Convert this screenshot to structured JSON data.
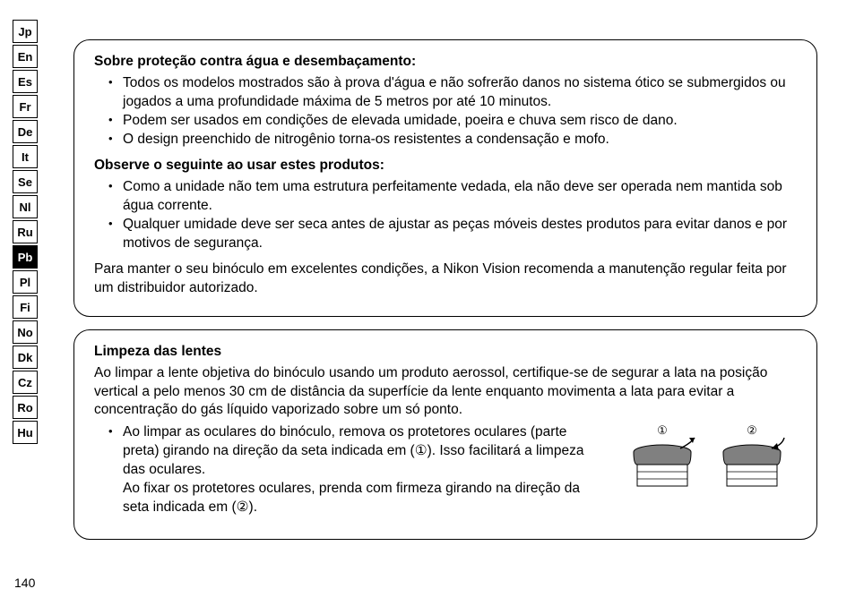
{
  "page_number": "140",
  "languages": {
    "items": [
      {
        "code": "Jp",
        "active": false
      },
      {
        "code": "En",
        "active": false
      },
      {
        "code": "Es",
        "active": false
      },
      {
        "code": "Fr",
        "active": false
      },
      {
        "code": "De",
        "active": false
      },
      {
        "code": "It",
        "active": false
      },
      {
        "code": "Se",
        "active": false
      },
      {
        "code": "Nl",
        "active": false
      },
      {
        "code": "Ru",
        "active": false
      },
      {
        "code": "Pb",
        "active": true
      },
      {
        "code": "Pl",
        "active": false
      },
      {
        "code": "Fi",
        "active": false
      },
      {
        "code": "No",
        "active": false
      },
      {
        "code": "Dk",
        "active": false
      },
      {
        "code": "Cz",
        "active": false
      },
      {
        "code": "Ro",
        "active": false
      },
      {
        "code": "Hu",
        "active": false
      }
    ]
  },
  "box1": {
    "heading1": "Sobre proteção contra água e desembaçamento:",
    "bullets1": [
      "Todos os modelos mostrados são à prova d'água e não sofrerão danos no sistema ótico se submergidos ou jogados a uma profundidade máxima de 5 metros por até 10 minutos.",
      "Podem ser usados em condições de elevada umidade, poeira e chuva sem risco de dano.",
      "O design preenchido de nitrogênio torna-os resistentes a condensação e mofo."
    ],
    "heading2": "Observe o seguinte ao usar estes produtos:",
    "bullets2": [
      "Como a unidade não tem uma estrutura perfeitamente vedada, ela não deve ser operada nem mantida sob água corrente.",
      "Qualquer umidade deve ser seca antes de ajustar as peças móveis destes produtos para evitar danos e por motivos de segurança."
    ],
    "footer": "Para manter o seu binóculo em excelentes condições, a Nikon Vision recomenda a manutenção regular feita por um distribuidor autorizado."
  },
  "box2": {
    "heading": "Limpeza das lentes",
    "intro": "Ao limpar a lente objetiva do binóculo usando um produto aerossol, certifique-se de segurar a lata na posição vertical a pelo menos 30 cm de distância da superfície da lente enquanto movimenta a lata para evitar a concentração do gás líquido vaporizado sobre um só ponto.",
    "bullet_html": "Ao limpar as oculares do binóculo, remova os protetores oculares (parte preta) girando na direção da seta indicada em (①). Isso facilitará a limpeza das oculares.\nAo fixar os protetores oculares, prenda com firmeza girando na direção da seta indicada em (②).",
    "fig": {
      "label1": "①",
      "label2": "②",
      "colors": {
        "cap": "#808080",
        "body": "#ffffff",
        "stroke": "#000000"
      }
    }
  }
}
